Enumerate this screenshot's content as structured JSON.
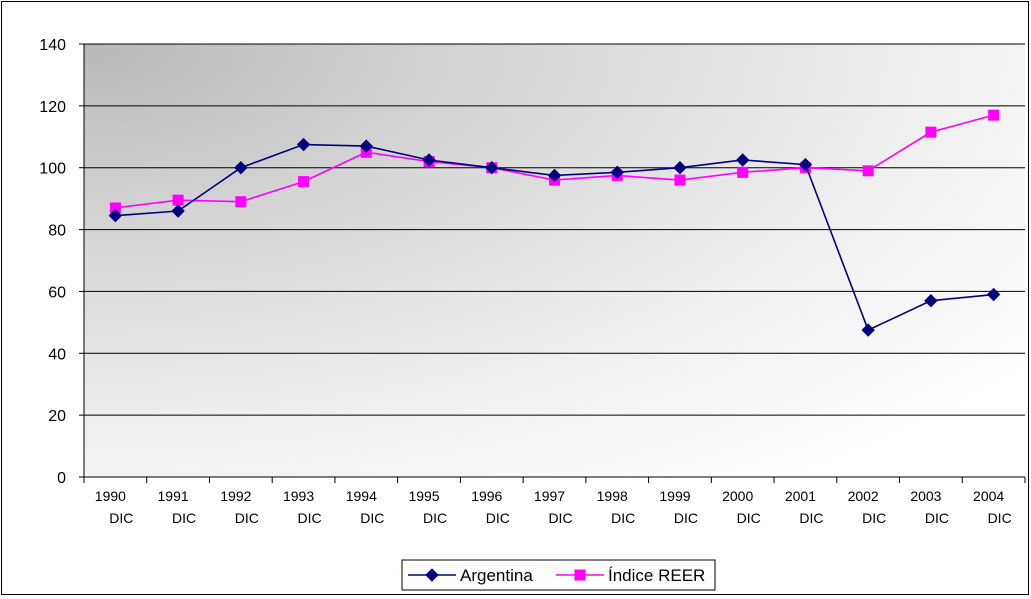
{
  "chart_data": {
    "type": "line",
    "categories": [
      [
        "1990",
        "DIC"
      ],
      [
        "1991",
        "DIC"
      ],
      [
        "1992",
        "DIC"
      ],
      [
        "1993",
        "DIC"
      ],
      [
        "1994",
        "DIC"
      ],
      [
        "1995",
        "DIC"
      ],
      [
        "1996",
        "DIC"
      ],
      [
        "1997",
        "DIC"
      ],
      [
        "1998",
        "DIC"
      ],
      [
        "1999",
        "DIC"
      ],
      [
        "2000",
        "DIC"
      ],
      [
        "2001",
        "DIC"
      ],
      [
        "2002",
        "DIC"
      ],
      [
        "2003",
        "DIC"
      ],
      [
        "2004",
        "DIC"
      ]
    ],
    "ylim": [
      0,
      140
    ],
    "yticks": [
      0,
      20,
      40,
      60,
      80,
      100,
      120,
      140
    ],
    "grid": true,
    "legend": "bottom-center",
    "series": [
      {
        "name": "Argentina",
        "color": "#000080",
        "marker": "diamond",
        "values": [
          84.5,
          86,
          100,
          107.5,
          107,
          102.5,
          100,
          97.5,
          98.5,
          100,
          102.5,
          101,
          47.5,
          57,
          59
        ]
      },
      {
        "name": "Índice REER",
        "color": "#ff00ff",
        "marker": "square",
        "values": [
          87,
          89.5,
          89,
          95.5,
          105,
          102,
          100,
          96,
          97.5,
          96,
          98.5,
          100,
          99,
          111.5,
          117
        ]
      }
    ]
  }
}
